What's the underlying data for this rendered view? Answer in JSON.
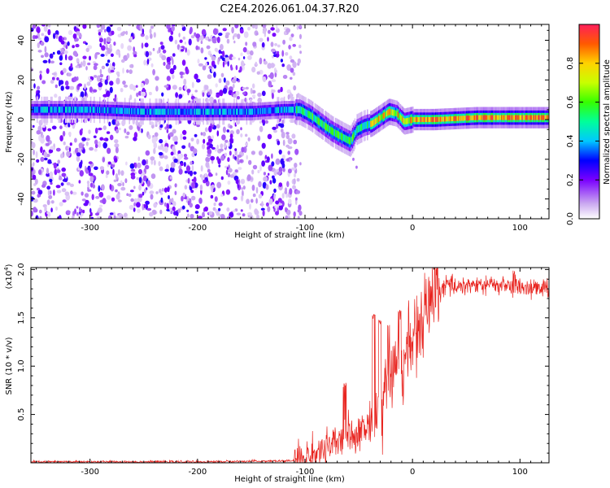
{
  "title": "C2E4.2026.061.04.37.R20",
  "chart_data": [
    {
      "type": "heatmap",
      "name": "spectrogram",
      "xlabel": "Height of straight line (km)",
      "ylabel": "Frequency (Hz)",
      "xlim": [
        -355,
        127
      ],
      "ylim": [
        -50,
        48
      ],
      "xticks": [
        -300,
        -200,
        -100,
        0,
        100
      ],
      "xtick_labels": [
        "-300",
        "-200",
        "-100",
        "0",
        "100"
      ],
      "yticks": [
        -40,
        -20,
        0,
        20,
        40
      ],
      "ytick_labels": [
        "-40",
        "-20",
        "0",
        "20",
        "40"
      ],
      "ridge": {
        "description_points": [
          {
            "x": -350,
            "f": 5
          },
          {
            "x": -300,
            "f": 5
          },
          {
            "x": -250,
            "f": 4
          },
          {
            "x": -200,
            "f": 4
          },
          {
            "x": -150,
            "f": 4
          },
          {
            "x": -120,
            "f": 5
          },
          {
            "x": -105,
            "f": 5
          },
          {
            "x": -95,
            "f": 2
          },
          {
            "x": -85,
            "f": -2
          },
          {
            "x": -75,
            "f": -6
          },
          {
            "x": -65,
            "f": -9
          },
          {
            "x": -58,
            "f": -11
          },
          {
            "x": -52,
            "f": -5
          },
          {
            "x": -45,
            "f": -3
          },
          {
            "x": -38,
            "f": -2
          },
          {
            "x": -30,
            "f": 1
          },
          {
            "x": -22,
            "f": 4
          },
          {
            "x": -15,
            "f": 3
          },
          {
            "x": -8,
            "f": -1
          },
          {
            "x": 0,
            "f": 0
          },
          {
            "x": 20,
            "f": 0
          },
          {
            "x": 60,
            "f": 1
          },
          {
            "x": 100,
            "f": 1
          },
          {
            "x": 127,
            "f": 1
          }
        ]
      },
      "noise_region": [
        -355,
        -110
      ],
      "colorbar": {
        "label": "Normalized spectral amplitude",
        "range": [
          0,
          1
        ],
        "ticks": [
          0.0,
          0.2,
          0.4,
          0.6,
          0.8
        ],
        "tick_labels": [
          "0.0",
          "0.2",
          "0.4",
          "0.6",
          "0.8"
        ]
      }
    },
    {
      "type": "line",
      "name": "snr",
      "xlabel": "Height of straight line (km)",
      "ylabel": "SNR (10 * v/v)",
      "y_multiplier_label": "(x10",
      "y_multiplier_exp": "4",
      "xlim": [
        -355,
        127
      ],
      "ylim": [
        0,
        2.02
      ],
      "xticks": [
        -300,
        -200,
        -100,
        0,
        100
      ],
      "xtick_labels": [
        "-300",
        "-200",
        "-100",
        "0",
        "100"
      ],
      "yticks": [
        0.5,
        1.0,
        1.5,
        2.0
      ],
      "ytick_labels": [
        "0.5",
        "1.0",
        "1.5",
        "2.0"
      ],
      "color": "#e8241f",
      "trend": [
        {
          "x": -355,
          "y": 0.01
        },
        {
          "x": -200,
          "y": 0.01
        },
        {
          "x": -110,
          "y": 0.02
        },
        {
          "x": -100,
          "y": 0.05
        },
        {
          "x": -85,
          "y": 0.12
        },
        {
          "x": -70,
          "y": 0.2
        },
        {
          "x": -60,
          "y": 0.28
        },
        {
          "x": -50,
          "y": 0.32
        },
        {
          "x": -40,
          "y": 0.4
        },
        {
          "x": -30,
          "y": 0.65
        },
        {
          "x": -20,
          "y": 0.9
        },
        {
          "x": -10,
          "y": 1.05
        },
        {
          "x": 0,
          "y": 1.25
        },
        {
          "x": 10,
          "y": 1.5
        },
        {
          "x": 20,
          "y": 1.72
        },
        {
          "x": 30,
          "y": 1.83
        },
        {
          "x": 50,
          "y": 1.84
        },
        {
          "x": 80,
          "y": 1.84
        },
        {
          "x": 127,
          "y": 1.8
        }
      ],
      "peaks": [
        {
          "x": -63,
          "y": 0.83
        },
        {
          "x": -36,
          "y": 1.54
        },
        {
          "x": -30,
          "y": 1.48
        },
        {
          "x": -22,
          "y": 1.45
        },
        {
          "x": -12,
          "y": 1.6
        },
        {
          "x": 95,
          "y": 1.99
        }
      ]
    }
  ]
}
